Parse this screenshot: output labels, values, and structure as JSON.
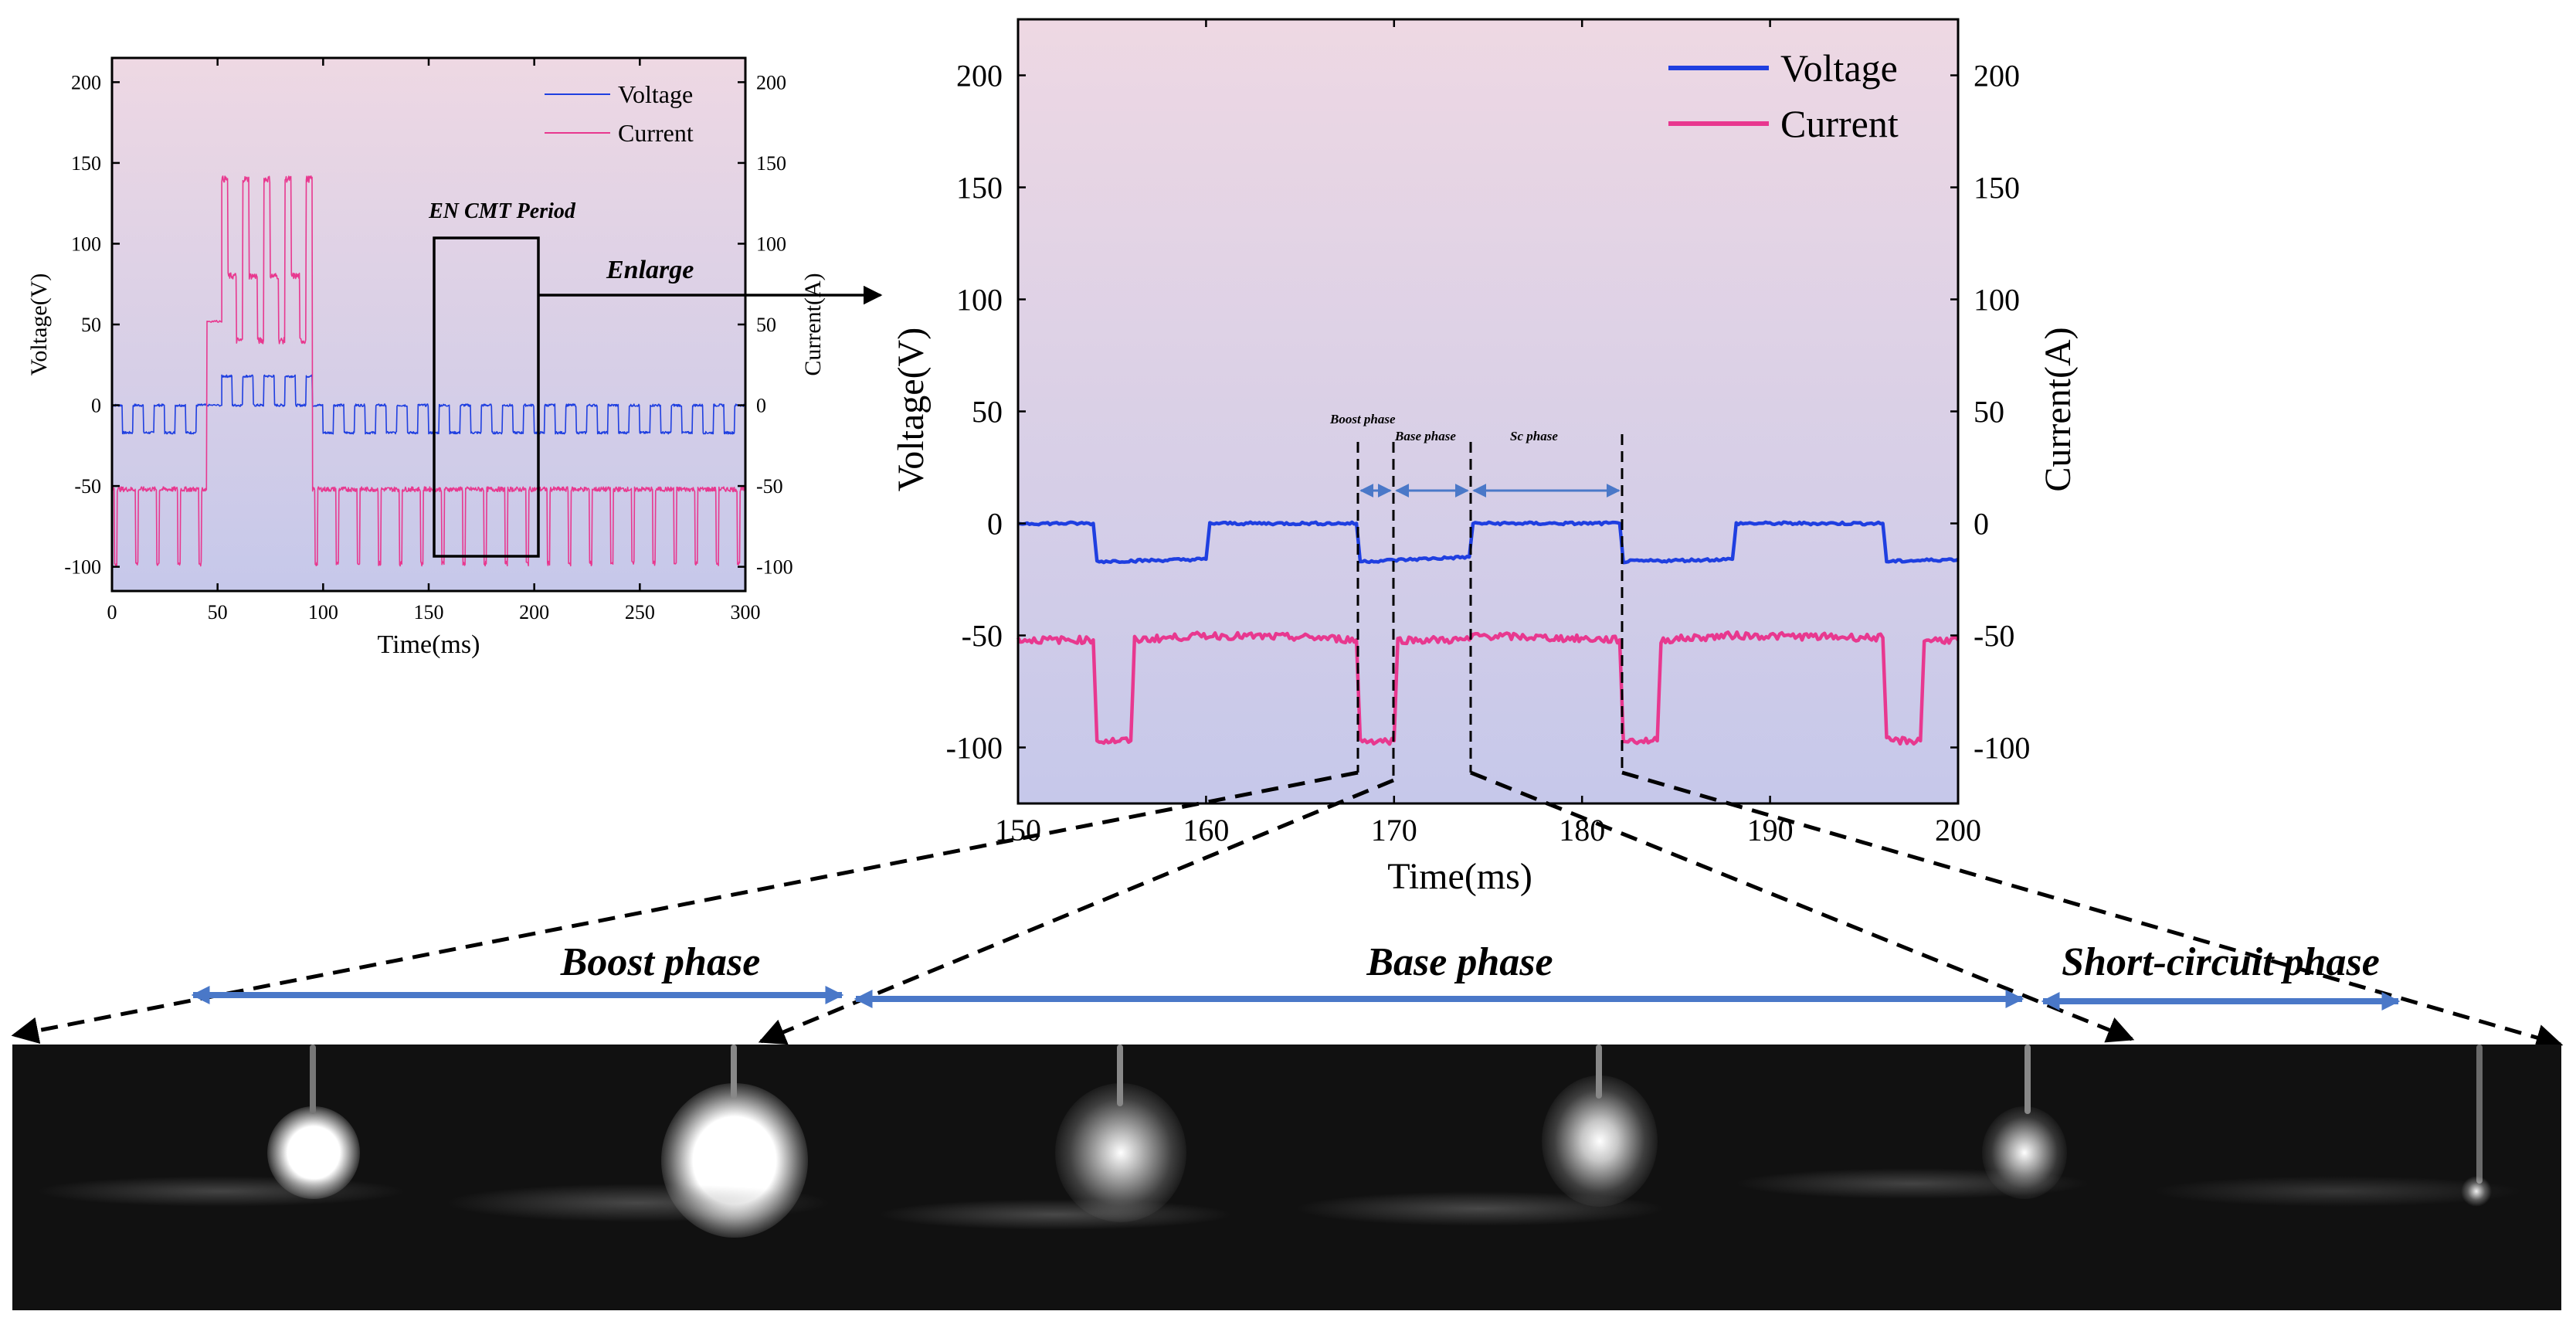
{
  "colors": {
    "voltage": "#1f3fe0",
    "current": "#e8388f",
    "phase_arrow": "#4a78c8",
    "bg_top": "#ecd6e2",
    "bg_bottom": "#c9c9ea"
  },
  "chart_data": [
    {
      "id": "overview",
      "type": "line",
      "xlabel": "Time(ms)",
      "ylabel": "Voltage(V)",
      "y2label": "Current(A)",
      "xlim": [
        0,
        300
      ],
      "ylim": [
        -115,
        215
      ],
      "xticks": [
        "0",
        "50",
        "100",
        "150",
        "200",
        "250",
        "300"
      ],
      "yticks": [
        "-100",
        "-50",
        "0",
        "50",
        "100",
        "150",
        "200"
      ],
      "grid": false,
      "legend": "top-right",
      "series": [
        {
          "name": "Voltage",
          "color": "#1f3fe0",
          "unit": "V",
          "segments": [
            {
              "t": [
                0,
                45
              ],
              "period": 10,
              "high": 0,
              "low": -17
            },
            {
              "t": [
                45,
                52
              ],
              "level": 0
            },
            {
              "t": [
                52,
                95
              ],
              "period": 10,
              "high": 18,
              "low": 0
            },
            {
              "t": [
                95,
                300
              ],
              "period": 10,
              "high": 0,
              "low": -17
            }
          ]
        },
        {
          "name": "Current",
          "color": "#e8388f",
          "unit": "A",
          "segments": [
            {
              "t": [
                0,
                45
              ],
              "period": 10,
              "base": -52,
              "dip": -98
            },
            {
              "t": [
                45,
                52
              ],
              "level": 52
            },
            {
              "t": [
                52,
                95
              ],
              "period": 10,
              "peak": 140,
              "mid": 80,
              "low": 40
            },
            {
              "t": [
                95,
                300
              ],
              "period": 10,
              "base": -52,
              "dip": -98
            }
          ]
        }
      ],
      "annotations": {
        "box_label": "EN  CMT  Period",
        "box_range_ms": [
          151,
          198
        ],
        "enlarge_label": "Enlarge"
      }
    },
    {
      "id": "enlarged",
      "type": "line",
      "xlabel": "Time(ms)",
      "ylabel": "Voltage(V)",
      "y2label": "Current(A)",
      "xlim": [
        150,
        200
      ],
      "ylim": [
        -125,
        225
      ],
      "xticks": [
        "150",
        "160",
        "170",
        "180",
        "190",
        "200"
      ],
      "yticks": [
        "-100",
        "-50",
        "0",
        "50",
        "100",
        "150",
        "200"
      ],
      "grid": false,
      "legend": "top-right",
      "series": [
        {
          "name": "Voltage",
          "color": "#1f3fe0",
          "unit": "V",
          "points": [
            [
              150,
              0
            ],
            [
              154,
              0
            ],
            [
              154.2,
              -17
            ],
            [
              160,
              -16
            ],
            [
              160.2,
              0
            ],
            [
              168,
              0
            ],
            [
              168.2,
              -17
            ],
            [
              174,
              -15
            ],
            [
              174.2,
              0
            ],
            [
              182,
              0
            ],
            [
              182.2,
              -17
            ],
            [
              188,
              -16
            ],
            [
              188.2,
              0
            ],
            [
              196,
              0
            ],
            [
              196.2,
              -17
            ],
            [
              200,
              -16
            ]
          ]
        },
        {
          "name": "Current",
          "color": "#e8388f",
          "unit": "A",
          "points": [
            [
              150,
              -52
            ],
            [
              154,
              -52
            ],
            [
              154.2,
              -97
            ],
            [
              156,
              -97
            ],
            [
              156.2,
              -52
            ],
            [
              160,
              -50
            ],
            [
              166,
              -51
            ],
            [
              168,
              -52
            ],
            [
              168.2,
              -97
            ],
            [
              170,
              -97
            ],
            [
              170.2,
              -52
            ],
            [
              174,
              -52
            ],
            [
              174.2,
              -50
            ],
            [
              182,
              -52
            ],
            [
              182.2,
              -97
            ],
            [
              184,
              -97
            ],
            [
              184.2,
              -52
            ],
            [
              188,
              -50
            ],
            [
              196,
              -51
            ],
            [
              196.2,
              -97
            ],
            [
              198,
              -97
            ],
            [
              198.2,
              -52
            ],
            [
              200,
              -52
            ]
          ]
        }
      ],
      "phase_markers_ms": [
        168.2,
        170,
        174.2,
        182.2
      ],
      "phase_labels": [
        "Boost phase",
        "Base phase",
        "Sc phase"
      ]
    }
  ],
  "legend": {
    "voltage": "Voltage",
    "current": "Current"
  },
  "phase_bar": {
    "boost": "Boost phase",
    "base": "Base phase",
    "short_circuit": "Short-circuit phase"
  }
}
